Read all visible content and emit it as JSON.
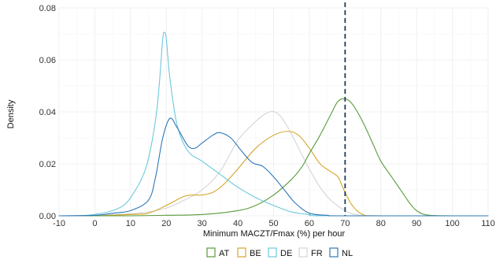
{
  "chart_data": {
    "type": "area",
    "xlabel": "Minimum MACZT/Fmax (%) per hour",
    "ylabel": "Density",
    "xlim": [
      -10,
      110
    ],
    "ylim": [
      0,
      0.08
    ],
    "x_ticks": [
      "-10",
      "0",
      "10",
      "20",
      "30",
      "40",
      "50",
      "60",
      "70",
      "80",
      "90",
      "100",
      "110"
    ],
    "y_ticks": [
      "0.00",
      "0.02",
      "0.04",
      "0.06",
      "0.08"
    ],
    "grid": true,
    "legend_position": "bottom",
    "reference_line": {
      "x": 70,
      "style": "dashed",
      "color": "#1f3b5c"
    },
    "series": [
      {
        "name": "AT",
        "color": "#5a9a3a",
        "points": [
          [
            -10,
            0
          ],
          [
            0,
            0
          ],
          [
            10,
            0
          ],
          [
            20,
            0.0002
          ],
          [
            30,
            0.0005
          ],
          [
            40,
            0.002
          ],
          [
            45,
            0.004
          ],
          [
            50,
            0.008
          ],
          [
            55,
            0.014
          ],
          [
            58,
            0.019
          ],
          [
            60,
            0.024
          ],
          [
            63,
            0.031
          ],
          [
            66,
            0.039
          ],
          [
            68,
            0.044
          ],
          [
            70,
            0.045
          ],
          [
            72,
            0.043
          ],
          [
            75,
            0.036
          ],
          [
            78,
            0.027
          ],
          [
            80,
            0.021
          ],
          [
            83,
            0.015
          ],
          [
            86,
            0.009
          ],
          [
            88,
            0.005
          ],
          [
            90,
            0.002
          ],
          [
            93,
            0.0003
          ],
          [
            100,
            0
          ],
          [
            110,
            0
          ]
        ]
      },
      {
        "name": "BE",
        "color": "#d4a62a",
        "points": [
          [
            -10,
            0
          ],
          [
            0,
            0
          ],
          [
            10,
            0.0005
          ],
          [
            15,
            0.001
          ],
          [
            20,
            0.004
          ],
          [
            25,
            0.0075
          ],
          [
            28,
            0.008
          ],
          [
            30,
            0.008
          ],
          [
            33,
            0.009
          ],
          [
            36,
            0.012
          ],
          [
            40,
            0.018
          ],
          [
            45,
            0.026
          ],
          [
            50,
            0.031
          ],
          [
            54,
            0.0325
          ],
          [
            57,
            0.031
          ],
          [
            60,
            0.026
          ],
          [
            63,
            0.02
          ],
          [
            66,
            0.017
          ],
          [
            68,
            0.015
          ],
          [
            69,
            0.012
          ],
          [
            70,
            0.009
          ],
          [
            72,
            0.004
          ],
          [
            75,
            0.0005
          ],
          [
            80,
            0
          ],
          [
            110,
            0
          ]
        ]
      },
      {
        "name": "DE",
        "color": "#6cc8dc",
        "points": [
          [
            -10,
            0
          ],
          [
            -5,
            0
          ],
          [
            0,
            0.0005
          ],
          [
            5,
            0.002
          ],
          [
            8,
            0.004
          ],
          [
            10,
            0.007
          ],
          [
            13,
            0.014
          ],
          [
            15,
            0.022
          ],
          [
            17,
            0.037
          ],
          [
            18,
            0.05
          ],
          [
            19,
            0.068
          ],
          [
            19.5,
            0.0705
          ],
          [
            20,
            0.068
          ],
          [
            21,
            0.053
          ],
          [
            23,
            0.035
          ],
          [
            26,
            0.025
          ],
          [
            30,
            0.021
          ],
          [
            35,
            0.016
          ],
          [
            40,
            0.011
          ],
          [
            45,
            0.007
          ],
          [
            50,
            0.004
          ],
          [
            55,
            0.0015
          ],
          [
            60,
            0.0005
          ],
          [
            65,
            0
          ],
          [
            110,
            0
          ]
        ]
      },
      {
        "name": "FR",
        "color": "#d4d4d4",
        "points": [
          [
            -10,
            0
          ],
          [
            0,
            0.0002
          ],
          [
            10,
            0.0008
          ],
          [
            15,
            0.0015
          ],
          [
            20,
            0.003
          ],
          [
            25,
            0.006
          ],
          [
            30,
            0.01
          ],
          [
            35,
            0.017
          ],
          [
            40,
            0.029
          ],
          [
            44,
            0.035
          ],
          [
            48,
            0.0395
          ],
          [
            51,
            0.0395
          ],
          [
            54,
            0.034
          ],
          [
            57,
            0.026
          ],
          [
            60,
            0.018
          ],
          [
            63,
            0.011
          ],
          [
            66,
            0.006
          ],
          [
            70,
            0.002
          ],
          [
            73,
            0.0005
          ],
          [
            80,
            0
          ],
          [
            110,
            0
          ]
        ]
      },
      {
        "name": "NL",
        "color": "#2e78b7",
        "points": [
          [
            -10,
            0
          ],
          [
            0,
            0.0002
          ],
          [
            5,
            0.001
          ],
          [
            10,
            0.002
          ],
          [
            15,
            0.006
          ],
          [
            17,
            0.015
          ],
          [
            19,
            0.03
          ],
          [
            21,
            0.0375
          ],
          [
            23,
            0.034
          ],
          [
            26,
            0.027
          ],
          [
            28,
            0.026
          ],
          [
            30,
            0.028
          ],
          [
            33,
            0.031
          ],
          [
            35,
            0.032
          ],
          [
            38,
            0.03
          ],
          [
            41,
            0.025
          ],
          [
            44,
            0.0205
          ],
          [
            47,
            0.019
          ],
          [
            50,
            0.015
          ],
          [
            53,
            0.01
          ],
          [
            56,
            0.005
          ],
          [
            60,
            0.001
          ],
          [
            65,
            0.0002
          ],
          [
            70,
            0
          ],
          [
            110,
            0
          ]
        ]
      }
    ]
  }
}
